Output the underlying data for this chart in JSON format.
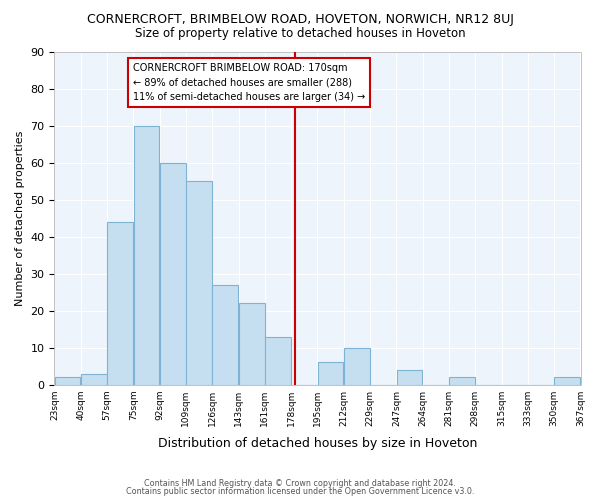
{
  "title": "CORNERCROFT, BRIMBELOW ROAD, HOVETON, NORWICH, NR12 8UJ",
  "subtitle": "Size of property relative to detached houses in Hoveton",
  "xlabel": "Distribution of detached houses by size in Hoveton",
  "ylabel": "Number of detached properties",
  "bar_heights": [
    2,
    3,
    44,
    70,
    60,
    55,
    27,
    22,
    13,
    0,
    6,
    10,
    0,
    4,
    0,
    2,
    0,
    0,
    0,
    2
  ],
  "bar_color": "#c6dff0",
  "bar_edge_color": "#7fb3d3",
  "vline_index": 8.65,
  "vline_color": "#cc0000",
  "ylim": [
    0,
    90
  ],
  "annotation_title": "CORNERCROFT BRIMBELOW ROAD: 170sqm",
  "annotation_line1": "← 89% of detached houses are smaller (288)",
  "annotation_line2": "11% of semi-detached houses are larger (34) →",
  "annotation_box_color": "#cc0000",
  "footer1": "Contains HM Land Registry data © Crown copyright and database right 2024.",
  "footer2": "Contains public sector information licensed under the Open Government Licence v3.0.",
  "tick_labels": [
    "23sqm",
    "40sqm",
    "57sqm",
    "75sqm",
    "92sqm",
    "109sqm",
    "126sqm",
    "143sqm",
    "161sqm",
    "178sqm",
    "195sqm",
    "212sqm",
    "229sqm",
    "247sqm",
    "264sqm",
    "281sqm",
    "298sqm",
    "315sqm",
    "333sqm",
    "350sqm",
    "367sqm"
  ],
  "bg_color": "#eef4fb",
  "title_fontsize": 9,
  "subtitle_fontsize": 8.5,
  "ylabel_fontsize": 8,
  "xlabel_fontsize": 9
}
